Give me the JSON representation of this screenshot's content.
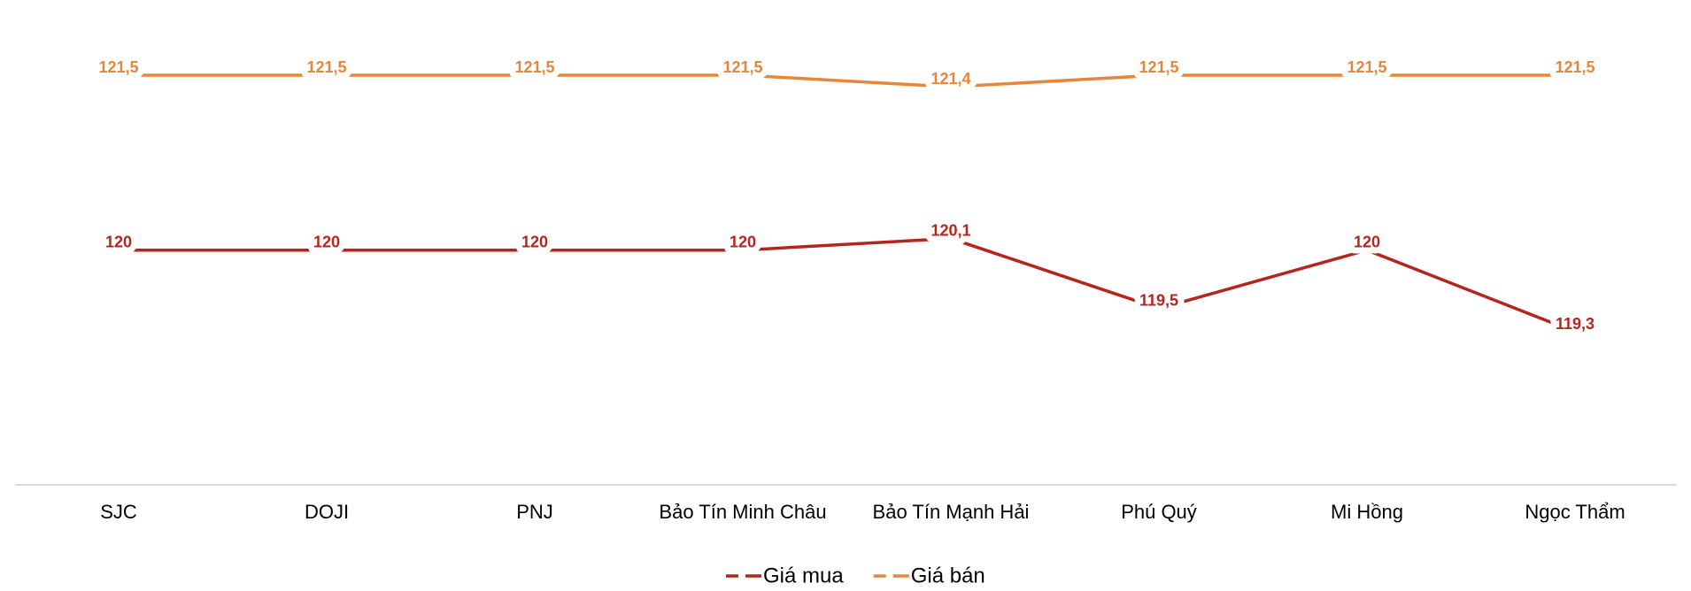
{
  "chart_data": {
    "type": "line",
    "categories": [
      "SJC",
      "DOJI",
      "PNJ",
      "Bảo Tín Minh Châu",
      "Bảo Tín Mạnh Hải",
      "Phú Quý",
      "Mi Hồng",
      "Ngọc Thẩm"
    ],
    "series": [
      {
        "name": "Giá mua",
        "color": "#b5251d",
        "values": [
          120,
          120,
          120,
          120,
          120.1,
          119.5,
          120,
          119.3
        ],
        "value_labels": [
          "120",
          "120",
          "120",
          "120",
          "120,1",
          "119,5",
          "120",
          "119,3"
        ]
      },
      {
        "name": "Giá bán",
        "color": "#e6863b",
        "values": [
          121.5,
          121.5,
          121.5,
          121.5,
          121.4,
          121.5,
          121.5,
          121.5
        ],
        "value_labels": [
          "121,5",
          "121,5",
          "121,5",
          "121,5",
          "121,4",
          "121,5",
          "121,5",
          "121,5"
        ]
      }
    ]
  }
}
